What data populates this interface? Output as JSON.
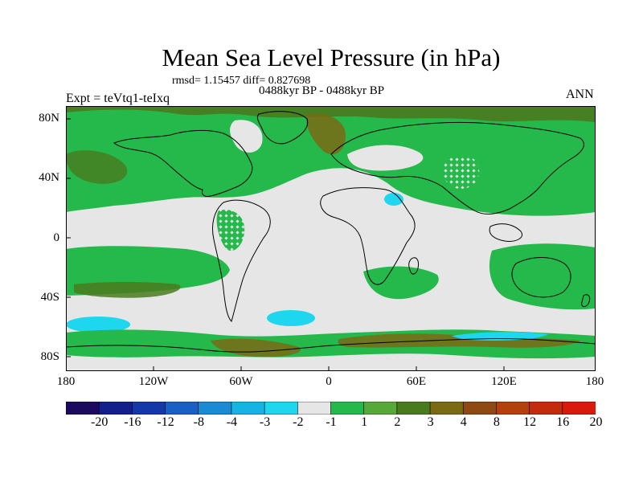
{
  "title": "Mean Sea Level Pressure (in hPa)",
  "stats": "rmsd= 1.15457 diff= 0.827698",
  "period": "0488kyr BP - 0488kyr BP",
  "expt": "Expt = teVtq1-teIxq",
  "season": "ANN",
  "lat_labels": [
    "80N",
    "40N",
    "0",
    "40S",
    "80S"
  ],
  "lon_labels": [
    "180",
    "120W",
    "60W",
    "0",
    "60E",
    "120E",
    "180"
  ],
  "colorbar": {
    "labels": [
      "-20",
      "-16",
      "-12",
      "-8",
      "-4",
      "-3",
      "-2",
      "-1",
      "1",
      "2",
      "3",
      "4",
      "8",
      "12",
      "16",
      "20"
    ],
    "colors": [
      "#1c0a5e",
      "#141e8c",
      "#1437aa",
      "#1a5fc4",
      "#1a8ad2",
      "#16b4e4",
      "#1ed7ef",
      "#e6e6e6",
      "#24b94a",
      "#56a838",
      "#4a7a1e",
      "#7a6a14",
      "#8e4a12",
      "#b4400e",
      "#c42a0c",
      "#d8190c"
    ]
  },
  "colors": {
    "background_band": "#e6e6e6",
    "green": "#24b94a",
    "olive": "#4a7a1e",
    "brown": "#7a6a14",
    "cyan": "#1ed7ef",
    "coast": "#000000"
  }
}
